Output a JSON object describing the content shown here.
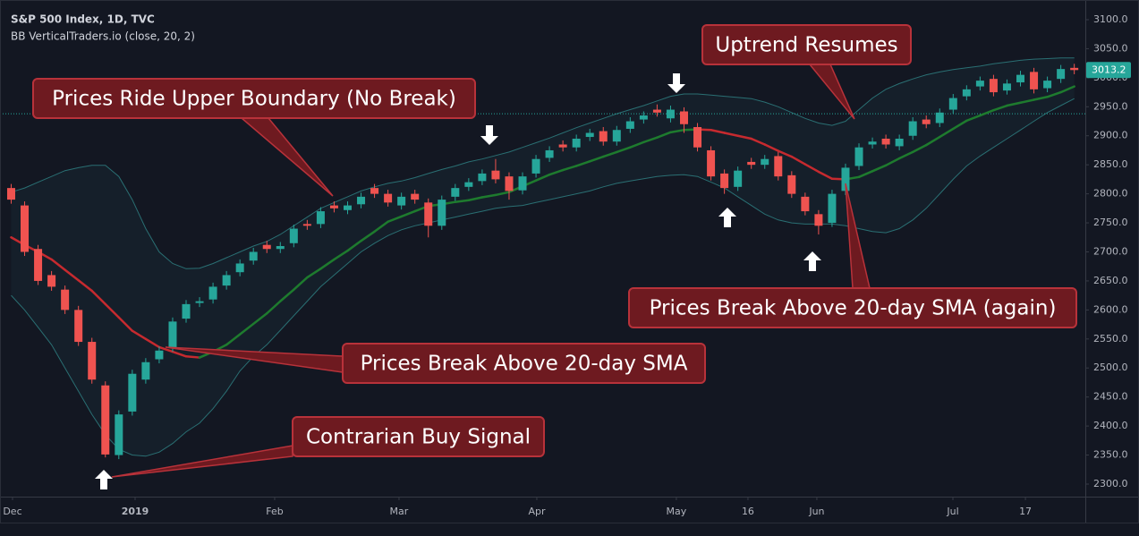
{
  "chart_data": {
    "type": "candlestick",
    "title": "S&P 500 Index, 1D, TVC",
    "subtitle": "BB VerticalTraders.io (close, 20, 2)",
    "x": [
      0,
      1,
      2,
      3,
      4,
      5,
      6,
      7,
      8,
      9,
      10,
      11,
      12,
      13,
      14,
      15,
      16,
      17,
      18,
      19,
      20,
      21,
      22,
      23,
      24,
      25,
      26,
      27,
      28,
      29,
      30,
      31,
      32,
      33,
      34,
      35,
      36,
      37,
      38,
      39,
      40,
      41,
      42,
      43,
      44,
      45,
      46,
      47,
      48,
      49,
      50,
      51,
      52,
      53,
      54,
      55,
      56,
      57,
      58,
      59,
      60,
      61,
      62,
      63,
      64,
      65,
      66,
      67,
      68,
      69,
      70,
      71,
      72,
      73,
      74,
      75,
      76,
      77,
      78,
      79
    ],
    "open": [
      2810,
      2780,
      2705,
      2660,
      2635,
      2600,
      2545,
      2470,
      2350,
      2425,
      2480,
      2515,
      2535,
      2585,
      2612,
      2618,
      2642,
      2665,
      2685,
      2712,
      2705,
      2715,
      2748,
      2748,
      2780,
      2772,
      2782,
      2810,
      2800,
      2780,
      2800,
      2785,
      2745,
      2795,
      2812,
      2822,
      2840,
      2830,
      2806,
      2835,
      2862,
      2885,
      2880,
      2898,
      2908,
      2890,
      2912,
      2928,
      2945,
      2930,
      2942,
      2915,
      2875,
      2835,
      2812,
      2855,
      2850,
      2865,
      2832,
      2795,
      2765,
      2750,
      2805,
      2848,
      2885,
      2895,
      2882,
      2900,
      2928,
      2922,
      2945,
      2968,
      2985,
      2998,
      2978,
      2992,
      3010,
      2982,
      2998,
      3017
    ],
    "high": [
      2817,
      2787,
      2712,
      2667,
      2642,
      2607,
      2552,
      2477,
      2427,
      2497,
      2517,
      2537,
      2587,
      2617,
      2622,
      2647,
      2667,
      2687,
      2707,
      2719,
      2717,
      2747,
      2755,
      2777,
      2787,
      2787,
      2802,
      2817,
      2807,
      2802,
      2807,
      2792,
      2797,
      2817,
      2827,
      2842,
      2860,
      2837,
      2837,
      2867,
      2882,
      2892,
      2902,
      2912,
      2915,
      2917,
      2932,
      2942,
      2954,
      2952,
      2949,
      2922,
      2882,
      2842,
      2847,
      2862,
      2867,
      2872,
      2839,
      2802,
      2772,
      2807,
      2852,
      2887,
      2897,
      2902,
      2902,
      2932,
      2935,
      2947,
      2972,
      2987,
      3002,
      3005,
      2997,
      3012,
      3017,
      3002,
      3022,
      3024
    ],
    "low": [
      2783,
      2693,
      2643,
      2633,
      2593,
      2538,
      2473,
      2346,
      2343,
      2418,
      2473,
      2508,
      2528,
      2578,
      2605,
      2611,
      2635,
      2658,
      2678,
      2698,
      2698,
      2708,
      2738,
      2741,
      2768,
      2765,
      2775,
      2793,
      2778,
      2773,
      2783,
      2725,
      2738,
      2788,
      2805,
      2815,
      2818,
      2790,
      2799,
      2828,
      2855,
      2873,
      2873,
      2891,
      2883,
      2883,
      2905,
      2921,
      2933,
      2923,
      2905,
      2873,
      2823,
      2800,
      2805,
      2843,
      2843,
      2823,
      2793,
      2763,
      2730,
      2743,
      2798,
      2841,
      2878,
      2878,
      2875,
      2893,
      2913,
      2915,
      2938,
      2961,
      2978,
      2968,
      2971,
      2985,
      2973,
      2975,
      2991,
      3006
    ],
    "close": [
      2790,
      2700,
      2650,
      2640,
      2600,
      2545,
      2480,
      2351,
      2420,
      2490,
      2510,
      2530,
      2580,
      2610,
      2615,
      2640,
      2660,
      2680,
      2700,
      2705,
      2710,
      2740,
      2745,
      2770,
      2775,
      2780,
      2795,
      2800,
      2785,
      2795,
      2790,
      2745,
      2790,
      2810,
      2820,
      2835,
      2825,
      2805,
      2830,
      2860,
      2875,
      2880,
      2895,
      2905,
      2890,
      2910,
      2925,
      2935,
      2940,
      2945,
      2920,
      2880,
      2830,
      2810,
      2840,
      2850,
      2860,
      2830,
      2800,
      2770,
      2745,
      2800,
      2845,
      2880,
      2890,
      2885,
      2895,
      2925,
      2920,
      2940,
      2965,
      2980,
      2995,
      2975,
      2990,
      3005,
      2980,
      2995,
      3015,
      3013.2
    ],
    "up_color": "#26a69a",
    "down_color": "#ef5350",
    "sma": [
      2725,
      2712,
      2700,
      2687,
      2669,
      2651,
      2633,
      2610,
      2587,
      2564,
      2550,
      2536,
      2528,
      2520,
      2518,
      2528,
      2540,
      2558,
      2576,
      2594,
      2615,
      2635,
      2656,
      2671,
      2687,
      2702,
      2719,
      2735,
      2752,
      2761,
      2770,
      2779,
      2782,
      2786,
      2789,
      2794,
      2798,
      2803,
      2813,
      2823,
      2833,
      2841,
      2848,
      2856,
      2864,
      2872,
      2880,
      2889,
      2897,
      2906,
      2910,
      2911,
      2910,
      2905,
      2900,
      2895,
      2885,
      2874,
      2864,
      2851,
      2838,
      2826,
      2825,
      2829,
      2839,
      2849,
      2861,
      2872,
      2884,
      2898,
      2912,
      2926,
      2935,
      2944,
      2952,
      2957,
      2962,
      2967,
      2975,
      2985
    ],
    "sma_rising_color": "#1e7b2e",
    "sma_falling_color": "#c62a2f",
    "upper": [
      2803,
      2810,
      2820,
      2830,
      2840,
      2845,
      2849,
      2849,
      2830,
      2790,
      2740,
      2700,
      2680,
      2671,
      2672,
      2680,
      2690,
      2700,
      2710,
      2718,
      2730,
      2745,
      2760,
      2775,
      2785,
      2795,
      2805,
      2812,
      2818,
      2822,
      2828,
      2835,
      2842,
      2848,
      2855,
      2860,
      2866,
      2872,
      2880,
      2888,
      2896,
      2905,
      2914,
      2922,
      2930,
      2938,
      2945,
      2952,
      2960,
      2968,
      2972,
      2972,
      2970,
      2968,
      2966,
      2964,
      2958,
      2950,
      2940,
      2930,
      2922,
      2918,
      2925,
      2945,
      2965,
      2980,
      2990,
      2998,
      3005,
      3010,
      3014,
      3017,
      3020,
      3024,
      3027,
      3030,
      3032,
      3033,
      3034,
      3034
    ],
    "lower": [
      2625,
      2600,
      2570,
      2540,
      2500,
      2460,
      2420,
      2385,
      2360,
      2350,
      2348,
      2355,
      2370,
      2390,
      2405,
      2430,
      2460,
      2495,
      2520,
      2540,
      2565,
      2590,
      2615,
      2640,
      2660,
      2680,
      2700,
      2715,
      2728,
      2738,
      2745,
      2750,
      2755,
      2760,
      2765,
      2770,
      2775,
      2778,
      2780,
      2785,
      2790,
      2795,
      2800,
      2805,
      2812,
      2818,
      2822,
      2826,
      2830,
      2832,
      2833,
      2830,
      2820,
      2810,
      2795,
      2780,
      2765,
      2755,
      2750,
      2748,
      2748,
      2748,
      2745,
      2740,
      2735,
      2733,
      2740,
      2755,
      2775,
      2800,
      2825,
      2848,
      2865,
      2880,
      2895,
      2910,
      2925,
      2940,
      2952,
      2964
    ],
    "band_color": "#2a6f73",
    "price_line": 2938,
    "ylim": [
      2278.4,
      3133.9
    ],
    "yticks": [
      {
        "value": 2300,
        "label": "2300.0"
      },
      {
        "value": 2350,
        "label": "2350.0"
      },
      {
        "value": 2400,
        "label": "2400.0"
      },
      {
        "value": 2450,
        "label": "2450.0"
      },
      {
        "value": 2500,
        "label": "2500.0"
      },
      {
        "value": 2550,
        "label": "2550.0"
      },
      {
        "value": 2600,
        "label": "2600.0"
      },
      {
        "value": 2650,
        "label": "2650.0"
      },
      {
        "value": 2700,
        "label": "2700.0"
      },
      {
        "value": 2750,
        "label": "2750.0"
      },
      {
        "value": 2800,
        "label": "2800.0"
      },
      {
        "value": 2850,
        "label": "2850.0"
      },
      {
        "value": 2900,
        "label": "2900.0"
      },
      {
        "value": 2950,
        "label": "2950.0"
      },
      {
        "value": 3000,
        "label": "3000.0"
      },
      {
        "value": 3050,
        "label": "3050.0"
      },
      {
        "value": 3100,
        "label": "3100.0"
      }
    ],
    "xlim": [
      -0.83,
      79.82
    ],
    "xticks": [
      {
        "value": 0.1,
        "label": "Dec"
      },
      {
        "value": 9.21,
        "label": "2019"
      },
      {
        "value": 19.58,
        "label": "Feb"
      },
      {
        "value": 28.82,
        "label": "Mar"
      },
      {
        "value": 39.06,
        "label": "Apr"
      },
      {
        "value": 49.43,
        "label": "May"
      },
      {
        "value": 54.75,
        "label": "16"
      },
      {
        "value": 59.87,
        "label": "Jun"
      },
      {
        "value": 69.98,
        "label": "Jul"
      },
      {
        "value": 75.37,
        "label": "17"
      }
    ],
    "grid": false,
    "annotations": [
      "Prices Ride Upper Boundary (No Break)",
      "Uptrend Resumes",
      "Prices Break Above 20-day SMA (again)",
      "Prices Break Above 20-day SMA",
      "Contrarian Buy Signal"
    ]
  }
}
